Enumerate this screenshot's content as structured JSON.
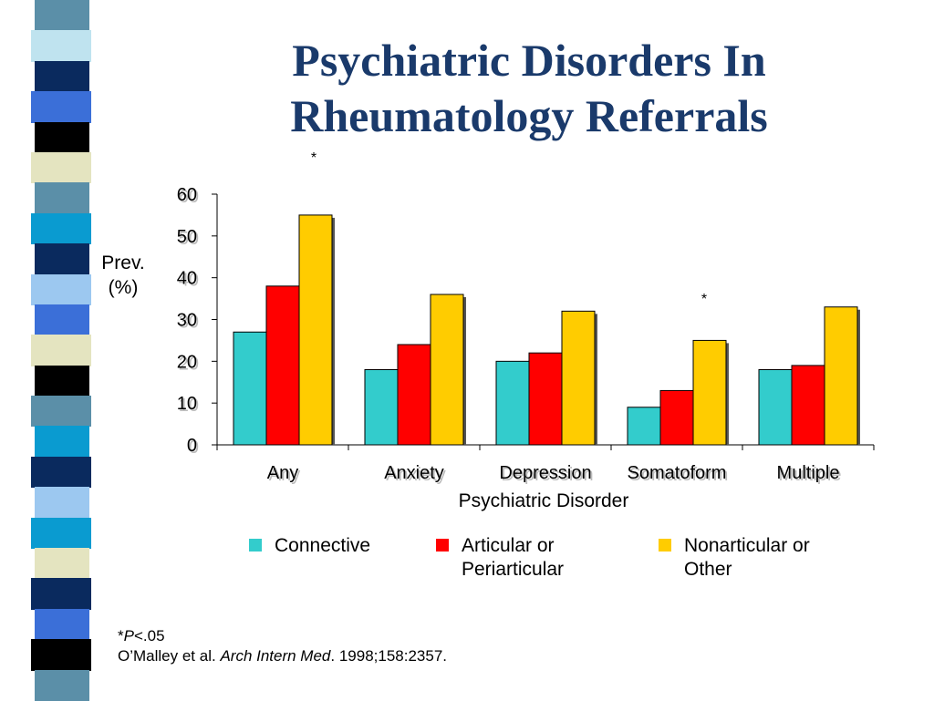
{
  "title": {
    "line1": "Psychiatric Disorders In",
    "line2": "Rheumatology Referrals"
  },
  "chart_data": {
    "type": "bar",
    "title": "Psychiatric Disorders In Rheumatology Referrals",
    "xlabel": "Psychiatric Disorder",
    "ylabel": "Prev. (%)",
    "ylim": [
      0,
      60
    ],
    "yticks": [
      0,
      10,
      20,
      30,
      40,
      50,
      60
    ],
    "categories": [
      "Any",
      "Anxiety",
      "Depression",
      "Somatoform",
      "Multiple"
    ],
    "series": [
      {
        "name": "Connective",
        "color": "#33cccc",
        "values": [
          27,
          18,
          20,
          9,
          18
        ]
      },
      {
        "name": "Articular or Periarticular",
        "color": "#ff0000",
        "values": [
          38,
          24,
          22,
          13,
          19
        ]
      },
      {
        "name": "Nonarticular or Other",
        "color": "#ffcc00",
        "values": [
          55,
          36,
          32,
          25,
          33
        ]
      }
    ],
    "annotations": [
      {
        "text": "*",
        "category": "Any"
      },
      {
        "text": "*",
        "category": "Somatoform"
      }
    ],
    "legend_position": "bottom"
  },
  "legend": [
    {
      "line1": "Connective",
      "line2": ""
    },
    {
      "line1": "Articular or",
      "line2": "Periarticular"
    },
    {
      "line1": "Nonarticular or",
      "line2": "Other"
    }
  ],
  "ylabel_lines": [
    "Prev.",
    "(%)"
  ],
  "footnote": {
    "star": "*",
    "p": "P",
    "sig": "<.05",
    "citation_authors": "O’Malley et al. ",
    "citation_journal": "Arch Intern Med",
    "citation_rest": ". 1998;158:2357."
  },
  "stripe_colors": [
    "#5b8fa8",
    "#bfe3ef",
    "#0a2a5e",
    "#3b6fd8",
    "#000000",
    "#e4e4c0",
    "#5b8fa8",
    "#0a9bd0",
    "#0a2a5e",
    "#9cc8f0",
    "#3b6fd8",
    "#e4e4c0",
    "#000000",
    "#5b8fa8",
    "#0a9bd0",
    "#0a2a5e",
    "#9cc8f0",
    "#0a9bd0",
    "#e4e4c0",
    "#0a2a5e",
    "#3b6fd8",
    "#000000",
    "#5b8fa8"
  ]
}
